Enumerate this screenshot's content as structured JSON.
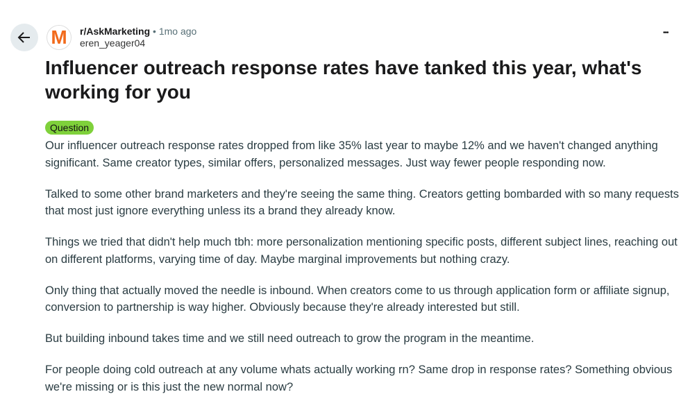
{
  "header": {
    "subreddit": "r/AskMarketing",
    "separator": "•",
    "time": "1mo ago",
    "author": "eren_yeager04",
    "avatar_letter": "M",
    "menu": "•••"
  },
  "post": {
    "title": "Influencer outreach response rates have tanked this year, what's working for you",
    "flair": "Question",
    "paragraphs": [
      "Our influencer outreach response rates dropped from like 35% last year to maybe 12% and we haven't changed anything significant. Same creator types, similar offers, personalized messages. Just way fewer people responding now.",
      "Talked to some other brand marketers and they're seeing the same thing. Creators getting bombarded with so many requests that most just ignore everything unless its a brand they already know.",
      "Things we tried that didn't help much tbh: more personalization mentioning specific posts, different subject lines, reaching out on different platforms, varying time of day. Maybe marginal improvements but nothing crazy.",
      "Only thing that actually moved the needle is inbound. When creators come to us through application form or affiliate signup, conversion to partnership is way higher. Obviously because they're already interested but still.",
      "But building inbound takes time and we still need outreach to grow the program in the meantime.",
      "For people doing cold outreach at any volume whats actually working rn? Same drop in response rates? Something obvious we're missing or is this just the new normal now?"
    ]
  }
}
